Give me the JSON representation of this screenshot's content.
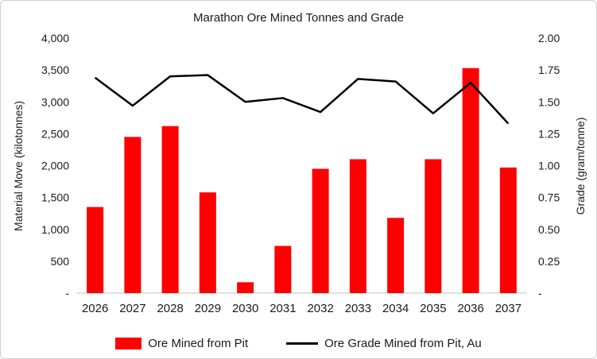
{
  "chart_data": {
    "type": "bar+line",
    "title": "Marathon Ore Mined Tonnes and Grade",
    "categories": [
      "2026",
      "2027",
      "2028",
      "2029",
      "2030",
      "2031",
      "2032",
      "2033",
      "2034",
      "2035",
      "2036",
      "2037"
    ],
    "series": [
      {
        "name": "Ore Mined from Pit",
        "type": "bar",
        "axis": "left",
        "color": "#fe0000",
        "values": [
          1350,
          2450,
          2620,
          1580,
          170,
          740,
          1950,
          2100,
          1180,
          2100,
          3530,
          1970
        ]
      },
      {
        "name": "Ore Grade Mined from Pit, Au",
        "type": "line",
        "axis": "right",
        "color": "#000000",
        "values": [
          1.69,
          1.47,
          1.7,
          1.71,
          1.5,
          1.53,
          1.42,
          1.68,
          1.66,
          1.41,
          1.65,
          1.33
        ]
      }
    ],
    "left_axis": {
      "label": "Material Move (kilotonnes)",
      "min": 0,
      "max": 4000,
      "step": 500,
      "tick_labels": [
        "-",
        "500",
        "1,000",
        "1,500",
        "2,000",
        "2,500",
        "3,000",
        "3,500",
        "4,000"
      ]
    },
    "right_axis": {
      "label": "Grade (gram/tonne)",
      "min": 0,
      "max": 2.0,
      "step": 0.25,
      "tick_labels": [
        "-",
        "0.25",
        "0.50",
        "0.75",
        "1.00",
        "1.25",
        "1.50",
        "1.75",
        "2.00"
      ]
    },
    "legend": [
      "Ore Mined from Pit",
      "Ore Grade Mined from Pit, Au"
    ],
    "grid": false,
    "legend_position": "bottom"
  }
}
